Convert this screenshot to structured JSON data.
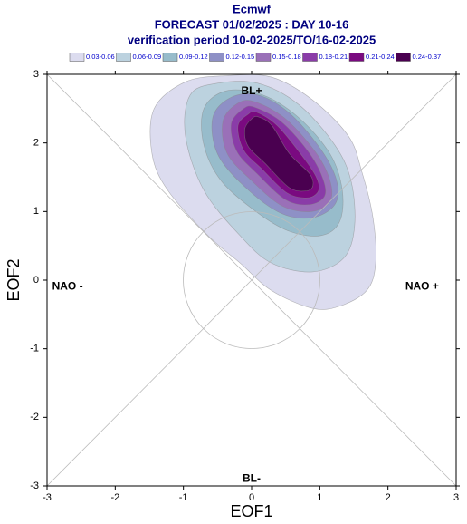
{
  "chart_data": {
    "type": "contourf",
    "title": "Ecmwf",
    "subtitle": "FORECAST 01/02/2025 : DAY 10-16",
    "subtitle2": "verification period 10-02-2025/TO/16-02-2025",
    "xlabel": "EOF1",
    "ylabel": "EOF2",
    "xlim": [
      -3,
      3
    ],
    "ylim": [
      -3,
      3
    ],
    "xticks": [
      -3,
      -2,
      -1,
      0,
      1,
      2,
      3
    ],
    "yticks": [
      -3,
      -2,
      -1,
      0,
      1,
      2,
      3
    ],
    "annotations": [
      {
        "text": "BL+",
        "x": 0,
        "y": 2.75
      },
      {
        "text": "BL-",
        "x": 0,
        "y": -2.9
      },
      {
        "text": "NAO -",
        "x": -2.7,
        "y": -0.1
      },
      {
        "text": "NAO +",
        "x": 2.5,
        "y": -0.1
      }
    ],
    "contours": [
      {
        "name": "0.03-0.06",
        "color": "#dcdcef",
        "x": [
          -0.37,
          -0.97,
          -1.43,
          -1.46,
          -1.23,
          -0.64,
          -0.17,
          0.29,
          0.89,
          1.29,
          1.69,
          1.82,
          1.78,
          1.62,
          1.42,
          0.89,
          0.29
        ],
        "y": [
          2.98,
          2.89,
          2.5,
          1.84,
          1.31,
          0.65,
          0.25,
          -0.15,
          -0.41,
          -0.38,
          -0.15,
          0.25,
          0.91,
          1.57,
          2.1,
          2.63,
          2.96
        ]
      },
      {
        "name": "0.06-0.09",
        "color": "#bcd2df",
        "x": [
          -0.5,
          -0.9,
          -0.97,
          -0.7,
          -0.17,
          0.29,
          0.89,
          1.35,
          1.51,
          1.46,
          1.22,
          0.69,
          0.09
        ],
        "y": [
          2.87,
          2.7,
          2.1,
          1.31,
          0.65,
          0.25,
          0.12,
          0.32,
          0.78,
          1.44,
          1.97,
          2.56,
          2.87
        ]
      },
      {
        "name": "0.09-0.12",
        "color": "#97bccb",
        "x": [
          -0.37,
          -0.7,
          -0.7,
          -0.44,
          0.09,
          0.56,
          1.02,
          1.29,
          1.33,
          1.15,
          0.69,
          0.16
        ],
        "y": [
          2.76,
          2.5,
          1.97,
          1.44,
          0.98,
          0.71,
          0.65,
          0.85,
          1.31,
          1.84,
          2.37,
          2.7
        ]
      },
      {
        "name": "0.12-0.15",
        "color": "#8e90c6",
        "x": [
          -0.31,
          -0.57,
          -0.5,
          -0.11,
          0.42,
          0.89,
          1.22,
          1.25,
          1.02,
          0.56,
          0.09
        ],
        "y": [
          2.66,
          2.37,
          1.84,
          1.37,
          0.98,
          0.91,
          1.1,
          1.44,
          1.9,
          2.43,
          2.7
        ]
      },
      {
        "name": "0.15-0.18",
        "color": "#9a70b8",
        "x": [
          -0.2,
          -0.42,
          -0.36,
          0.0,
          0.45,
          0.88,
          1.15,
          1.15,
          0.95,
          0.5,
          0.05
        ],
        "y": [
          2.58,
          2.32,
          1.85,
          1.45,
          1.08,
          1.0,
          1.15,
          1.45,
          1.85,
          2.35,
          2.6
        ]
      },
      {
        "name": "0.18-0.21",
        "color": "#8a3ca8",
        "x": [
          -0.12,
          -0.3,
          -0.22,
          0.08,
          0.5,
          0.85,
          1.07,
          1.05,
          0.85,
          0.45,
          0.05
        ],
        "y": [
          2.5,
          2.28,
          1.88,
          1.55,
          1.17,
          1.1,
          1.22,
          1.47,
          1.85,
          2.3,
          2.52
        ]
      },
      {
        "name": "0.21-0.24",
        "color": "#7a0a80",
        "x": [
          -0.05,
          -0.2,
          -0.12,
          0.15,
          0.52,
          0.82,
          0.98,
          0.95,
          0.75,
          0.38,
          0.07
        ],
        "y": [
          2.42,
          2.25,
          1.9,
          1.62,
          1.27,
          1.2,
          1.3,
          1.5,
          1.8,
          2.25,
          2.45
        ]
      },
      {
        "name": "0.24-0.37",
        "color": "#4a0050",
        "x": [
          0.0,
          -0.1,
          -0.05,
          0.2,
          0.55,
          0.8,
          0.9,
          0.85,
          0.55,
          0.3,
          0.1
        ],
        "y": [
          2.35,
          2.2,
          1.95,
          1.7,
          1.35,
          1.3,
          1.38,
          1.55,
          1.85,
          2.25,
          2.38
        ]
      }
    ]
  }
}
